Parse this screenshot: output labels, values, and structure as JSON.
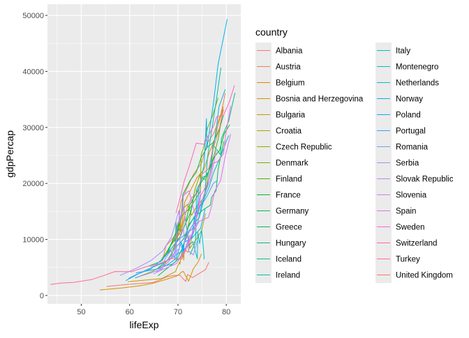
{
  "chart_data": {
    "type": "line",
    "xlabel": "lifeExp",
    "ylabel": "gdpPercap",
    "xlim": [
      43,
      83
    ],
    "ylim": [
      -1500,
      52000
    ],
    "x_ticks": [
      50,
      60,
      70,
      80
    ],
    "y_ticks": [
      0,
      10000,
      20000,
      30000,
      40000,
      50000
    ],
    "y_tick_labels": [
      "0",
      "10000",
      "20000",
      "30000",
      "40000",
      "50000"
    ],
    "grid": true,
    "legend_title": "country",
    "legend_position": "right",
    "series": [
      {
        "name": "Albania",
        "color": "#F8766D",
        "x": [
          55.2,
          59.3,
          64.8,
          66.2,
          67.7,
          68.9,
          70.4,
          72.0,
          71.6,
          73.0,
          75.7,
          76.4
        ],
        "y": [
          1601,
          1942,
          2313,
          2760,
          3313,
          3533,
          3631,
          3739,
          2497,
          3193,
          4604,
          5937
        ]
      },
      {
        "name": "Austria",
        "color": "#EE7F4A",
        "x": [
          66.8,
          67.5,
          69.5,
          70.1,
          70.6,
          72.2,
          73.2,
          74.9,
          76.0,
          77.5,
          78.9,
          79.8
        ],
        "y": [
          6137,
          8843,
          10751,
          12835,
          16662,
          19749,
          21597,
          23688,
          27042,
          29096,
          32418,
          36126
        ]
      },
      {
        "name": "Belgium",
        "color": "#DF8900",
        "x": [
          68.0,
          69.2,
          70.3,
          70.9,
          71.4,
          72.8,
          73.9,
          75.4,
          76.5,
          77.5,
          78.3,
          79.4
        ],
        "y": [
          8343,
          9715,
          10991,
          13149,
          16672,
          19118,
          20979,
          22526,
          25576,
          27561,
          30486,
          33693
        ]
      },
      {
        "name": "Bosnia and Herzegovina",
        "color": "#D49200",
        "x": [
          53.8,
          58.5,
          61.9,
          64.8,
          67.5,
          69.9,
          70.7,
          71.1,
          72.2,
          73.2,
          74.2,
          74.9
        ],
        "y": [
          974,
          1354,
          1710,
          2172,
          2860,
          3528,
          4127,
          4314,
          2546,
          4766,
          6018,
          7446
        ]
      },
      {
        "name": "Bulgaria",
        "color": "#C39A00",
        "x": [
          59.6,
          66.6,
          69.5,
          70.4,
          70.9,
          70.8,
          71.1,
          71.3,
          71.2,
          70.3,
          72.1,
          73.0
        ],
        "y": [
          2444,
          3009,
          4255,
          5578,
          6598,
          7613,
          8225,
          8239,
          6303,
          5970,
          7697,
          10681
        ]
      },
      {
        "name": "Croatia",
        "color": "#B0A100",
        "x": [
          61.2,
          64.8,
          67.1,
          68.5,
          69.6,
          70.6,
          70.5,
          71.5,
          72.5,
          73.7,
          74.9,
          75.7
        ],
        "y": [
          3119,
          4338,
          5478,
          6961,
          9164,
          11305,
          13222,
          13823,
          8448,
          9876,
          11628,
          14619
        ]
      },
      {
        "name": "Czech Republic",
        "color": "#98A900",
        "x": [
          66.9,
          69.0,
          69.9,
          70.4,
          70.0,
          70.7,
          70.9,
          72.0,
          72.8,
          74.0,
          75.5,
          76.5
        ],
        "y": [
          6876,
          8256,
          10137,
          11399,
          13108,
          14801,
          15377,
          16310,
          14297,
          16049,
          17596,
          22833
        ]
      },
      {
        "name": "Denmark",
        "color": "#7AAE00",
        "x": [
          70.8,
          71.8,
          72.4,
          72.9,
          73.5,
          74.7,
          74.6,
          74.8,
          75.3,
          76.1,
          77.2,
          78.3
        ],
        "y": [
          9692,
          11100,
          13583,
          15937,
          18866,
          20422,
          21688,
          25116,
          26406,
          29804,
          32166,
          35278
        ]
      },
      {
        "name": "Finland",
        "color": "#4DB200",
        "x": [
          66.6,
          67.5,
          68.8,
          69.8,
          70.9,
          72.5,
          74.6,
          74.8,
          75.7,
          77.1,
          78.4,
          79.3
        ],
        "y": [
          6425,
          7545,
          9372,
          10922,
          14359,
          15605,
          18533,
          21141,
          20647,
          23724,
          28205,
          33207
        ]
      },
      {
        "name": "France",
        "color": "#00B81F",
        "x": [
          67.4,
          68.9,
          70.5,
          71.6,
          72.4,
          73.8,
          74.9,
          76.3,
          77.5,
          78.6,
          79.6,
          80.7
        ],
        "y": [
          7030,
          8663,
          10560,
          12999,
          16107,
          18293,
          20293,
          22066,
          24703,
          25889,
          28926,
          30470
        ]
      },
      {
        "name": "Germany",
        "color": "#00BA43",
        "x": [
          67.5,
          69.1,
          70.3,
          70.8,
          71.0,
          72.5,
          73.8,
          74.8,
          76.1,
          77.3,
          78.7,
          79.4
        ],
        "y": [
          7144,
          10188,
          12902,
          14746,
          18016,
          20513,
          22032,
          24639,
          26505,
          27289,
          30036,
          32170
        ]
      },
      {
        "name": "Greece",
        "color": "#00BD5C",
        "x": [
          65.9,
          67.9,
          69.5,
          71.0,
          72.3,
          73.7,
          75.2,
          76.7,
          77.0,
          77.9,
          78.3,
          79.5
        ],
        "y": [
          3531,
          4916,
          6017,
          8513,
          12725,
          14196,
          15269,
          16121,
          17541,
          18748,
          22514,
          27538
        ]
      },
      {
        "name": "Hungary",
        "color": "#00BF77",
        "x": [
          64.0,
          66.4,
          67.9,
          69.5,
          69.8,
          70.0,
          69.9,
          69.6,
          69.2,
          71.0,
          72.6,
          73.3
        ],
        "y": [
          5264,
          6040,
          7550,
          9326,
          10168,
          11675,
          12546,
          12986,
          10536,
          11712,
          14843,
          18009
        ]
      },
      {
        "name": "Iceland",
        "color": "#00C08E",
        "x": [
          72.5,
          73.5,
          73.7,
          73.7,
          74.5,
          76.1,
          76.99,
          77.2,
          78.8,
          79.0,
          80.5,
          81.8
        ],
        "y": [
          7268,
          9244,
          10350,
          13320,
          15758,
          19655,
          23270,
          26923,
          25144,
          28061,
          31163,
          36181
        ]
      },
      {
        "name": "Ireland",
        "color": "#00C0A3",
        "x": [
          66.9,
          68.9,
          70.3,
          71.1,
          71.3,
          72.0,
          73.1,
          74.4,
          75.5,
          76.1,
          77.8,
          78.9
        ],
        "y": [
          5210,
          5599,
          6632,
          7656,
          9531,
          11151,
          12618,
          13873,
          17559,
          24522,
          34077,
          40676
        ]
      },
      {
        "name": "Italy",
        "color": "#00BFB7",
        "x": [
          65.9,
          67.8,
          69.2,
          71.1,
          72.2,
          73.5,
          75.0,
          76.4,
          77.4,
          78.8,
          80.2,
          80.5
        ],
        "y": [
          4931,
          6249,
          8243,
          10022,
          12269,
          14256,
          16537,
          19207,
          22014,
          24675,
          27968,
          28570
        ]
      },
      {
        "name": "Montenegro",
        "color": "#00BCCA",
        "x": [
          59.2,
          61.4,
          63.7,
          67.2,
          70.6,
          73.1,
          74.1,
          74.9,
          75.4,
          75.4,
          74.0,
          74.5
        ],
        "y": [
          2648,
          3682,
          4650,
          5907,
          7778,
          9596,
          11222,
          11733,
          7004,
          6465,
          6558,
          9254
        ]
      },
      {
        "name": "Netherlands",
        "color": "#00B8DC",
        "x": [
          72.1,
          73.0,
          73.2,
          73.8,
          73.8,
          75.2,
          76.1,
          76.8,
          77.4,
          78.0,
          78.5,
          79.8
        ],
        "y": [
          8942,
          11277,
          12791,
          15364,
          18795,
          21209,
          21399,
          23651,
          26791,
          30246,
          33725,
          36798
        ]
      },
      {
        "name": "Norway",
        "color": "#00B2EB",
        "x": [
          72.7,
          73.4,
          73.5,
          74.1,
          74.3,
          75.4,
          76.0,
          75.9,
          77.3,
          78.3,
          79.1,
          80.2
        ],
        "y": [
          10095,
          11654,
          13450,
          16362,
          18965,
          23311,
          26299,
          31541,
          33966,
          41283,
          44684,
          49357
        ]
      },
      {
        "name": "Poland",
        "color": "#00ABFA",
        "x": [
          61.3,
          65.8,
          67.6,
          69.6,
          70.9,
          70.7,
          71.3,
          71.0,
          71.0,
          72.8,
          74.7,
          75.6
        ],
        "y": [
          4029,
          4735,
          5338,
          6557,
          8006,
          9509,
          9508,
          9082,
          7739,
          10160,
          12002,
          15390
        ]
      },
      {
        "name": "Portugal",
        "color": "#35A2FF",
        "x": [
          59.8,
          61.5,
          64.4,
          66.6,
          69.3,
          70.4,
          72.8,
          74.1,
          74.9,
          75.97,
          77.3,
          78.1
        ],
        "y": [
          3068,
          3775,
          4728,
          6361,
          9022,
          10172,
          11754,
          13039,
          16207,
          17641,
          19971,
          20510
        ]
      },
      {
        "name": "Romania",
        "color": "#7997FF",
        "x": [
          61.1,
          64.1,
          66.8,
          67.3,
          68.5,
          69.5,
          69.7,
          69.5,
          69.4,
          69.7,
          71.3,
          72.5
        ],
        "y": [
          3145,
          3944,
          4734,
          6470,
          8011,
          9356,
          9605,
          9696,
          6598,
          7346,
          7886,
          10809
        ]
      },
      {
        "name": "Serbia",
        "color": "#9F8CFF",
        "x": [
          58.0,
          61.7,
          64.5,
          66.9,
          68.7,
          70.3,
          70.2,
          71.2,
          72.2,
          72.2,
          73.2,
          74.0
        ],
        "y": [
          3581,
          4981,
          6290,
          7992,
          10523,
          12980,
          15181,
          15871,
          9325,
          7914,
          7236,
          9787
        ]
      },
      {
        "name": "Slovak Republic",
        "color": "#BD81FF",
        "x": [
          64.4,
          67.5,
          69.2,
          70.3,
          70.4,
          70.5,
          70.8,
          71.1,
          71.4,
          72.7,
          73.8,
          74.7
        ],
        "y": [
          5075,
          6093,
          7481,
          8412,
          9674,
          10922,
          11348,
          12037,
          9499,
          12126,
          13639,
          18678
        ]
      },
      {
        "name": "Slovenia",
        "color": "#D575FE",
        "x": [
          65.6,
          67.9,
          69.2,
          69.7,
          69.8,
          70.97,
          71.1,
          72.3,
          73.6,
          75.1,
          76.7,
          77.9
        ],
        "y": [
          4215,
          5862,
          7403,
          9405,
          12384,
          15277,
          17867,
          18678,
          14214,
          17161,
          20660,
          25768
        ]
      },
      {
        "name": "Spain",
        "color": "#E86BF5",
        "x": [
          64.9,
          66.7,
          69.7,
          71.4,
          72.7,
          74.4,
          76.3,
          76.9,
          77.6,
          78.8,
          79.8,
          80.9
        ],
        "y": [
          3834,
          4565,
          5694,
          7993,
          10639,
          13236,
          13926,
          15765,
          18603,
          20445,
          24835,
          28821
        ]
      },
      {
        "name": "Sweden",
        "color": "#F863DF",
        "x": [
          71.9,
          72.5,
          73.4,
          74.2,
          74.7,
          75.4,
          76.4,
          77.2,
          78.2,
          79.4,
          80.0,
          80.9
        ],
        "y": [
          8528,
          9912,
          12329,
          15258,
          17832,
          18856,
          20667,
          23587,
          23880,
          25267,
          29342,
          33860
        ]
      },
      {
        "name": "Switzerland",
        "color": "#FF62BC",
        "x": [
          69.6,
          70.6,
          71.3,
          72.3,
          73.8,
          75.4,
          76.2,
          77.4,
          78.0,
          79.4,
          80.6,
          81.7
        ],
        "y": [
          14734,
          17909,
          20431,
          22966,
          27195,
          26982,
          28398,
          30282,
          31872,
          32135,
          34481,
          37506
        ]
      },
      {
        "name": "Turkey",
        "color": "#FF6C91",
        "x": [
          43.6,
          45.9,
          48.4,
          52.1,
          54.3,
          57.0,
          60.4,
          63.3,
          66.1,
          68.8,
          70.8,
          71.8
        ],
        "y": [
          1969,
          2219,
          2322,
          2826,
          3451,
          4269,
          4241,
          5089,
          5678,
          6601,
          6508,
          8458
        ]
      },
      {
        "name": "United Kingdom",
        "color": "#F8766D",
        "x": [
          69.2,
          70.4,
          70.8,
          71.4,
          72.0,
          72.8,
          74.0,
          75.0,
          76.4,
          77.2,
          78.5,
          79.4
        ],
        "y": [
          9980,
          11283,
          12477,
          14143,
          15895,
          17429,
          18232,
          21664,
          22705,
          26075,
          29479,
          33203
        ]
      }
    ]
  }
}
